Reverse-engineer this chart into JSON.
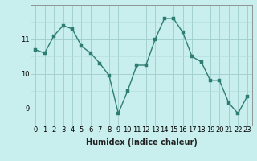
{
  "x": [
    0,
    1,
    2,
    3,
    4,
    5,
    6,
    7,
    8,
    9,
    10,
    11,
    12,
    13,
    14,
    15,
    16,
    17,
    18,
    19,
    20,
    21,
    22,
    23
  ],
  "y": [
    10.7,
    10.6,
    11.1,
    11.4,
    11.3,
    10.8,
    10.6,
    10.3,
    9.95,
    8.85,
    9.5,
    10.25,
    10.25,
    11.0,
    11.6,
    11.6,
    11.2,
    10.5,
    10.35,
    9.8,
    9.8,
    9.15,
    8.85,
    9.35
  ],
  "line_color": "#2e7d72",
  "marker_color": "#2e7d72",
  "bg_color": "#c8eeee",
  "xlabel": "Humidex (Indice chaleur)",
  "xlim": [
    -0.5,
    23.5
  ],
  "ylim": [
    8.5,
    12.0
  ],
  "yticks": [
    9,
    10,
    11
  ],
  "xticks": [
    0,
    1,
    2,
    3,
    4,
    5,
    6,
    7,
    8,
    9,
    10,
    11,
    12,
    13,
    14,
    15,
    16,
    17,
    18,
    19,
    20,
    21,
    22,
    23
  ],
  "xlabel_fontsize": 7,
  "tick_fontsize": 6,
  "line_width": 1.0,
  "marker_size": 2.5
}
